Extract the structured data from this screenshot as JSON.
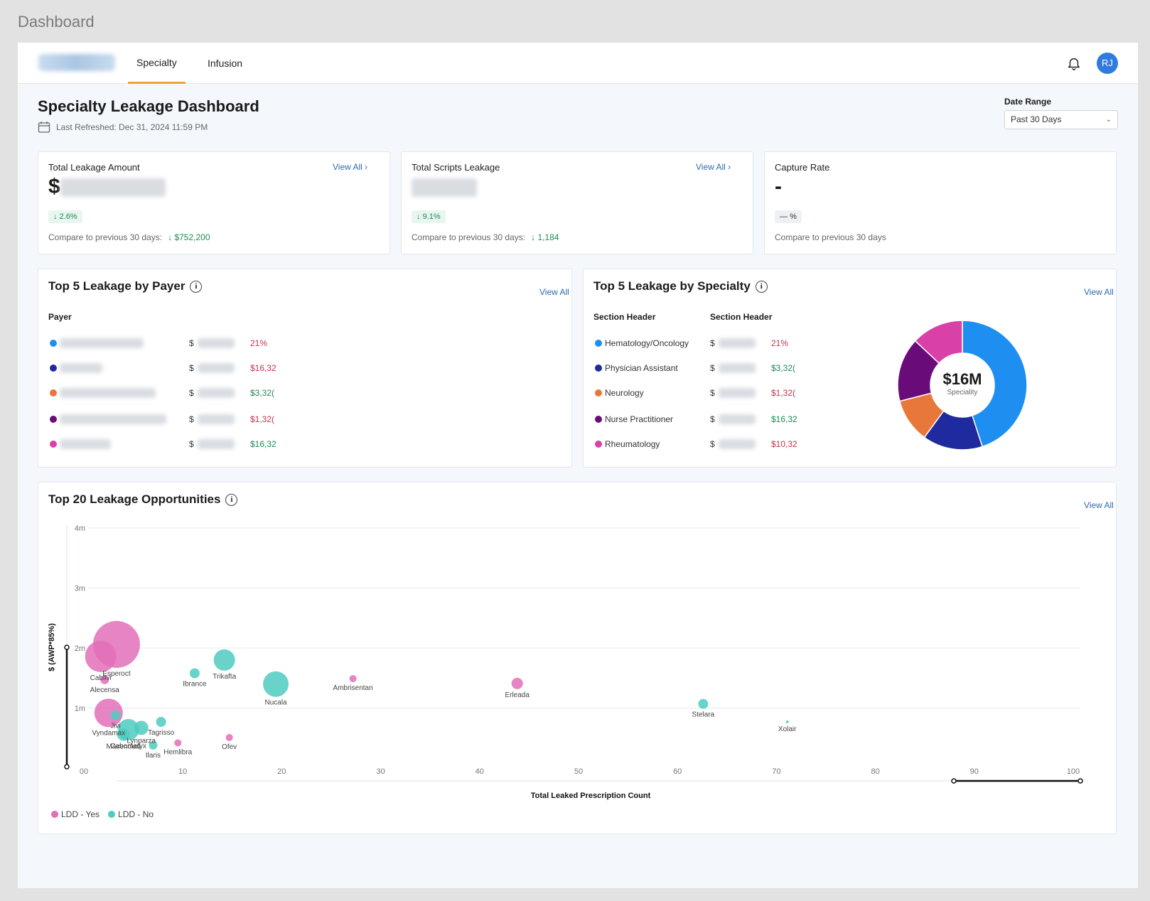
{
  "page_label": "Dashboard",
  "nav": {
    "tabs": [
      {
        "label": "Specialty"
      },
      {
        "label": "Infusion"
      }
    ],
    "avatar_initials": "RJ"
  },
  "header": {
    "title": "Specialty Leakage Dashboard",
    "last_refreshed": "Last Refreshed: Dec 31, 2024 11:59 PM"
  },
  "date_range": {
    "label": "Date Range",
    "value": "Past 30 Days"
  },
  "kpis": [
    {
      "label": "Total Leakage Amount",
      "prefix": "$",
      "view_all": "View All",
      "change": "2.6%",
      "compare_label": "Compare to previous 30 days:",
      "compare_delta": "$752,200"
    },
    {
      "label": "Total Scripts Leakage",
      "view_all": "View All",
      "change": "9.1%",
      "compare_label": "Compare to previous 30 days:",
      "compare_delta": "1,184"
    },
    {
      "label": "Capture Rate",
      "value": "-",
      "change": "%",
      "compare_label": "Compare to previous 30 days"
    }
  ],
  "payer": {
    "title": "Top 5 Leakage by Payer",
    "view_all": "View All",
    "col_header": "Payer",
    "currency": "$",
    "rows": [
      {
        "color": "#1f8ef1",
        "change": "21%",
        "dir": "up"
      },
      {
        "color": "#1f2a9e",
        "change": "$16,32",
        "dir": "up"
      },
      {
        "color": "#e8783a",
        "change": "$3,32(",
        "dir": "down"
      },
      {
        "color": "#6a0b7a",
        "change": "$1,32(",
        "dir": "up"
      },
      {
        "color": "#d940a8",
        "change": "$16,32",
        "dir": "down"
      }
    ]
  },
  "specialty": {
    "title": "Top 5 Leakage by Specialty",
    "view_all": "View All",
    "col_header_1": "Section Header",
    "col_header_2": "Section Header",
    "currency": "$",
    "rows": [
      {
        "name": "Hematology/Oncology",
        "color": "#1f8ef1",
        "change": "21%",
        "dir": "up"
      },
      {
        "name": "Physician Assistant",
        "color": "#1f2a9e",
        "change": "$3,32(",
        "dir": "down"
      },
      {
        "name": "Neurology",
        "color": "#e8783a",
        "change": "$1,32(",
        "dir": "up"
      },
      {
        "name": "Nurse Practitioner",
        "color": "#6a0b7a",
        "change": "$16,32",
        "dir": "down"
      },
      {
        "name": "Rheumatology",
        "color": "#d940a8",
        "change": "$10,32",
        "dir": "up"
      }
    ],
    "donut": {
      "center_value": "$16M",
      "center_label": "Speciality",
      "shares": [
        0.45,
        0.15,
        0.11,
        0.16,
        0.13
      ],
      "colors": [
        "#1f8ef1",
        "#1f2a9e",
        "#e8783a",
        "#6a0b7a",
        "#d940a8"
      ]
    }
  },
  "opportunities": {
    "title": "Top 20 Leakage Opportunities",
    "view_all": "View All",
    "legend": [
      {
        "label": "LDD - Yes",
        "color": "#e36fb8"
      },
      {
        "label": "LDD - No",
        "color": "#4fcbc1"
      }
    ]
  },
  "chart_data": {
    "type": "scatter",
    "xlabel": "Total Leaked Prescription Count",
    "ylabel": "$ (AWP*85%)",
    "xlim": [
      0,
      100
    ],
    "ylim": [
      0,
      4000000
    ],
    "x_ticks": [
      "00",
      "10",
      "20",
      "30",
      "40",
      "50",
      "60",
      "70",
      "80",
      "90",
      "100"
    ],
    "y_ticks": [
      {
        "v": 1000000,
        "label": "1m"
      },
      {
        "v": 2000000,
        "label": "2m"
      },
      {
        "v": 3000000,
        "label": "3m"
      },
      {
        "v": 4000000,
        "label": "4m"
      }
    ],
    "series": [
      {
        "name": "LDD - Yes",
        "color": "#e36fb8",
        "points": [
          {
            "label": "Esperoct",
            "x": 3.3,
            "y": 2060000,
            "r": 33
          },
          {
            "label": "Cablivi",
            "x": 1.7,
            "y": 1860000,
            "r": 22
          },
          {
            "label": "Alecensa",
            "x": 2.1,
            "y": 1470000,
            "r": 6
          },
          {
            "label": "Vyndamax",
            "x": 2.5,
            "y": 920000,
            "r": 20
          },
          {
            "label": "Ambrisentan",
            "x": 27.2,
            "y": 1490000,
            "r": 5
          },
          {
            "label": "Erleada",
            "x": 43.8,
            "y": 1410000,
            "r": 8
          },
          {
            "label": "Hemlibra",
            "x": 9.5,
            "y": 420000,
            "r": 5
          },
          {
            "label": "Ofev",
            "x": 14.7,
            "y": 510000,
            "r": 5
          }
        ]
      },
      {
        "name": "LDD - No",
        "color": "#4fcbc1",
        "points": [
          {
            "label": "Ibrance",
            "x": 11.2,
            "y": 1580000,
            "r": 7
          },
          {
            "label": "Trikafta",
            "x": 14.2,
            "y": 1800000,
            "r": 15
          },
          {
            "label": "Nucala",
            "x": 19.4,
            "y": 1400000,
            "r": 18
          },
          {
            "label": "Stelara",
            "x": 62.6,
            "y": 1070000,
            "r": 7
          },
          {
            "label": "Xolair",
            "x": 71.1,
            "y": 770000,
            "r": 2
          },
          {
            "label": "Jivi",
            "x": 3.2,
            "y": 880000,
            "r": 7
          },
          {
            "label": "Tagrisso",
            "x": 7.8,
            "y": 770000,
            "r": 7
          },
          {
            "label": "Cabometyx",
            "x": 4.5,
            "y": 640000,
            "r": 15
          },
          {
            "label": "Lynparza",
            "x": 5.8,
            "y": 670000,
            "r": 10
          },
          {
            "label": "Mavenclad",
            "x": 4.0,
            "y": 560000,
            "r": 9
          },
          {
            "label": "Ilaris",
            "x": 7.0,
            "y": 380000,
            "r": 6
          }
        ]
      }
    ]
  }
}
